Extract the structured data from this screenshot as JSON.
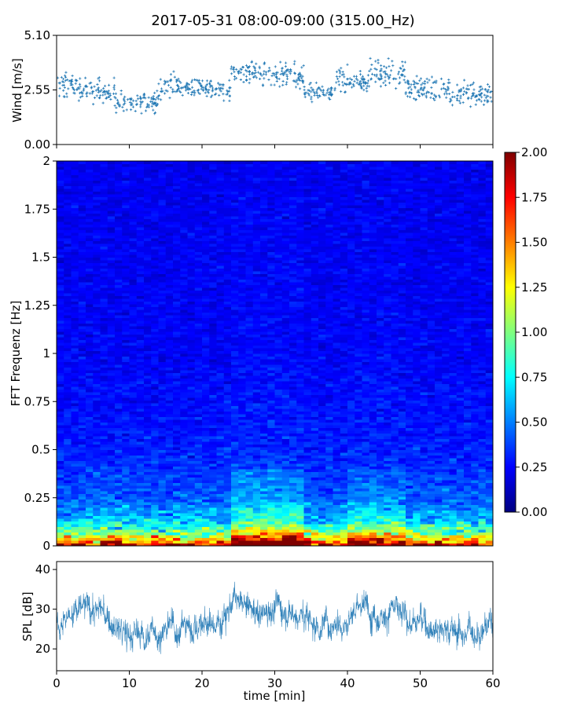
{
  "title": "2017-05-31 08:00-09:00 (315.00_Hz)",
  "chart_data": [
    {
      "type": "scatter",
      "panel": "wind",
      "ylabel": "Wind [m/s]",
      "xlim": [
        0,
        60
      ],
      "ylim": [
        0,
        5.1
      ],
      "yticks": [
        "0.00",
        "2.55",
        "5.10"
      ],
      "color": "#1f77b4",
      "marker": "+",
      "segments": [
        {
          "x_range": [
            0,
            4
          ],
          "mean": 2.7,
          "spread": 0.6
        },
        {
          "x_range": [
            4,
            8
          ],
          "mean": 2.5,
          "spread": 0.55
        },
        {
          "x_range": [
            8,
            14
          ],
          "mean": 2.0,
          "spread": 0.5
        },
        {
          "x_range": [
            14,
            20
          ],
          "mean": 2.7,
          "spread": 0.55
        },
        {
          "x_range": [
            20,
            24
          ],
          "mean": 2.6,
          "spread": 0.45
        },
        {
          "x_range": [
            24,
            28
          ],
          "mean": 3.4,
          "spread": 0.5
        },
        {
          "x_range": [
            28,
            34
          ],
          "mean": 3.2,
          "spread": 0.6
        },
        {
          "x_range": [
            34,
            38
          ],
          "mean": 2.4,
          "spread": 0.4
        },
        {
          "x_range": [
            38,
            43
          ],
          "mean": 3.0,
          "spread": 0.6
        },
        {
          "x_range": [
            43,
            48
          ],
          "mean": 3.3,
          "spread": 0.6
        },
        {
          "x_range": [
            48,
            54
          ],
          "mean": 2.6,
          "spread": 0.55
        },
        {
          "x_range": [
            54,
            60
          ],
          "mean": 2.4,
          "spread": 0.55
        }
      ]
    },
    {
      "type": "heatmap",
      "panel": "spectrogram",
      "ylabel": "FFT Frequenz [Hz]",
      "xlim": [
        0,
        60
      ],
      "ylim": [
        0,
        2
      ],
      "yticks": [
        "0",
        "0.25",
        "0.5",
        "0.75",
        "1",
        "1.25",
        "1.5",
        "1.75",
        "2"
      ],
      "colormap": "jet",
      "clim": [
        0,
        2
      ],
      "colorbar_ticks": [
        "0.00",
        "0.25",
        "0.50",
        "0.75",
        "1.00",
        "1.25",
        "1.50",
        "1.75",
        "2.00"
      ],
      "colormap_stops": [
        "#00007f",
        "#0000ff",
        "#007fff",
        "#00ffff",
        "#7fff7f",
        "#ffff00",
        "#ff7f00",
        "#ff0000",
        "#7f0000"
      ],
      "typical_level_by_frequency": [
        {
          "freq": 0.0,
          "value": 1.9
        },
        {
          "freq": 0.03,
          "value": 1.4
        },
        {
          "freq": 0.08,
          "value": 0.9
        },
        {
          "freq": 0.15,
          "value": 0.6
        },
        {
          "freq": 0.25,
          "value": 0.42
        },
        {
          "freq": 0.5,
          "value": 0.3
        },
        {
          "freq": 1.0,
          "value": 0.24
        },
        {
          "freq": 2.0,
          "value": 0.22
        }
      ]
    },
    {
      "type": "line",
      "panel": "spl",
      "ylabel": "SPL [dB]",
      "xlabel": "time [min]",
      "xlim": [
        0,
        60
      ],
      "ylim": [
        14.5,
        42
      ],
      "yticks": [
        "20",
        "30",
        "40"
      ],
      "xticks": [
        "0",
        "10",
        "20",
        "30",
        "40",
        "50",
        "60"
      ],
      "color": "#1f77b4",
      "envelope": [
        {
          "x": 0,
          "y": 27
        },
        {
          "x": 2,
          "y": 29
        },
        {
          "x": 4,
          "y": 30
        },
        {
          "x": 6,
          "y": 30
        },
        {
          "x": 8,
          "y": 25
        },
        {
          "x": 10,
          "y": 23
        },
        {
          "x": 12,
          "y": 24
        },
        {
          "x": 14,
          "y": 24
        },
        {
          "x": 16,
          "y": 25
        },
        {
          "x": 18,
          "y": 26
        },
        {
          "x": 20,
          "y": 26
        },
        {
          "x": 22,
          "y": 26
        },
        {
          "x": 24,
          "y": 32
        },
        {
          "x": 26,
          "y": 30
        },
        {
          "x": 28,
          "y": 29
        },
        {
          "x": 30,
          "y": 31
        },
        {
          "x": 32,
          "y": 30
        },
        {
          "x": 34,
          "y": 28
        },
        {
          "x": 36,
          "y": 26
        },
        {
          "x": 38,
          "y": 27
        },
        {
          "x": 40,
          "y": 28
        },
        {
          "x": 42,
          "y": 31
        },
        {
          "x": 44,
          "y": 29
        },
        {
          "x": 46,
          "y": 30
        },
        {
          "x": 48,
          "y": 27
        },
        {
          "x": 50,
          "y": 27
        },
        {
          "x": 52,
          "y": 26
        },
        {
          "x": 54,
          "y": 25
        },
        {
          "x": 56,
          "y": 24
        },
        {
          "x": 58,
          "y": 25
        },
        {
          "x": 60,
          "y": 27
        }
      ]
    }
  ]
}
